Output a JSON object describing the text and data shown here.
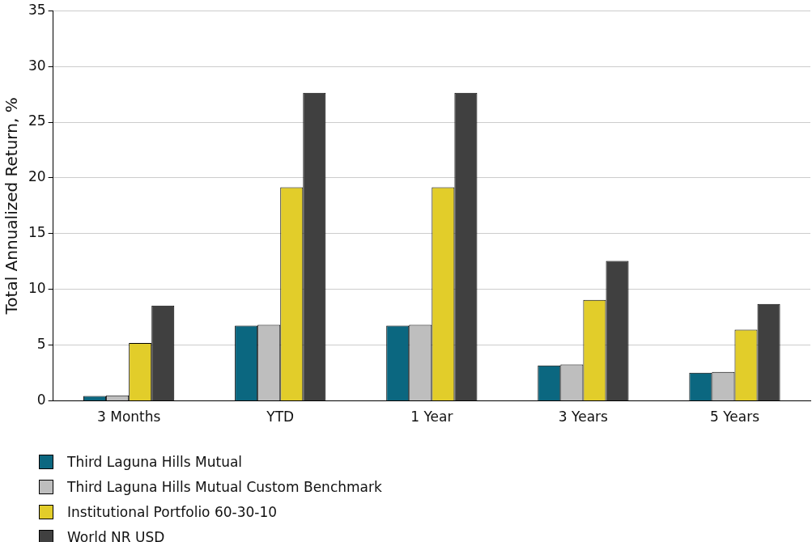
{
  "chart_data": {
    "type": "bar",
    "ylabel": "Total Annualized Return, %",
    "categories": [
      "3 Months",
      "YTD",
      "1 Year",
      "3 Years",
      "5 Years"
    ],
    "series": [
      {
        "name": "Third Laguna Hills Mutual",
        "color": "#0b6780",
        "values": [
          0.45,
          6.76,
          6.76,
          3.19,
          2.53
        ]
      },
      {
        "name": "Third Laguna Hills Mutual Custom Benchmark",
        "color": "#bebebe",
        "values": [
          0.5,
          6.83,
          6.83,
          3.27,
          2.6
        ]
      },
      {
        "name": "Institutional Portfolio 60-30-10",
        "color": "#e2cd2a",
        "values": [
          5.2,
          19.17,
          19.17,
          9.06,
          6.39
        ]
      },
      {
        "name": "World NR USD",
        "color": "#404040",
        "values": [
          8.55,
          27.64,
          27.64,
          12.56,
          8.69
        ]
      }
    ],
    "ylim": [
      0,
      35
    ],
    "yticks": [
      0,
      5,
      10,
      15,
      20,
      25,
      30,
      35
    ],
    "grid": "y",
    "legend": "bottom"
  }
}
